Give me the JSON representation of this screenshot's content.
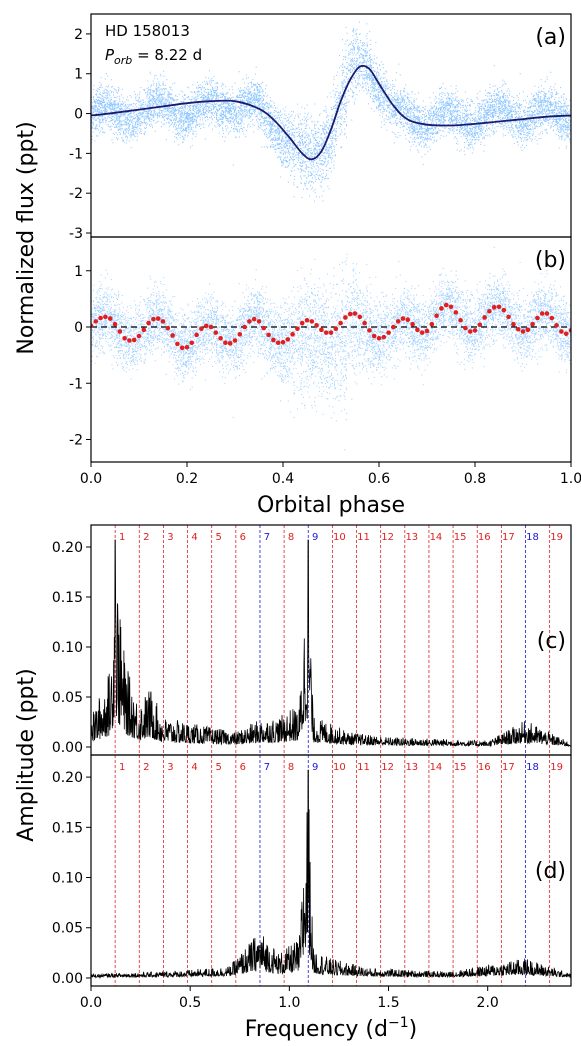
{
  "figure": {
    "panel_a": {
      "label": "(a)",
      "star_name": "HD 158013",
      "porb_symbol": "P",
      "porb_sub": "orb",
      "porb_value": " = 8.22 d"
    },
    "panel_b": {
      "label": "(b)"
    },
    "panel_c": {
      "label": "(c)"
    },
    "panel_d": {
      "label": "(d)"
    },
    "top_ylabel": "Normalized flux (ppt)",
    "top_xlabel": "Orbital phase",
    "bottom_ylabel_main": "Amplitude (ppt)",
    "bottom_xlabel_main": "Frequency (d",
    "bottom_xlabel_sup": "−1",
    "bottom_xlabel_end": ")"
  },
  "colors": {
    "scatter": "#3399ff",
    "model": "#1a1a6e",
    "binned": "#e02020",
    "harmonic_red": "#e02020",
    "harmonic_blue": "#1a1ad6"
  },
  "chart_data": [
    {
      "panel": "a",
      "type": "scatter",
      "xlim": [
        0.0,
        1.0
      ],
      "ylim": [
        -3.1,
        2.5
      ],
      "yticks": [
        "-3",
        "-2",
        "-1",
        "0",
        "1",
        "2"
      ],
      "model_phase": [
        0.0,
        0.05,
        0.1,
        0.15,
        0.2,
        0.25,
        0.3,
        0.35,
        0.38,
        0.41,
        0.44,
        0.46,
        0.48,
        0.5,
        0.52,
        0.54,
        0.56,
        0.58,
        0.6,
        0.63,
        0.66,
        0.7,
        0.75,
        0.8,
        0.85,
        0.9,
        0.95,
        1.0
      ],
      "model_flux": [
        -0.05,
        0.02,
        0.1,
        0.18,
        0.26,
        0.31,
        0.31,
        0.12,
        -0.15,
        -0.55,
        -1.0,
        -1.15,
        -0.95,
        -0.4,
        0.3,
        0.85,
        1.18,
        1.12,
        0.75,
        0.2,
        -0.15,
        -0.28,
        -0.3,
        -0.26,
        -0.2,
        -0.14,
        -0.08,
        -0.05
      ]
    },
    {
      "panel": "b",
      "type": "scatter",
      "xlim": [
        0.0,
        1.0
      ],
      "ylim": [
        -2.4,
        1.6
      ],
      "yticks": [
        "-2",
        "-1",
        "0",
        "1"
      ],
      "xticks": [
        "0.0",
        "0.2",
        "0.4",
        "0.6",
        "0.8",
        "1.0"
      ],
      "zero_line": 0,
      "binned_phase": [
        0.0,
        0.01,
        0.02,
        0.03,
        0.04,
        0.05,
        0.06,
        0.07,
        0.08,
        0.09,
        0.1,
        0.11,
        0.12,
        0.13,
        0.14,
        0.15,
        0.16,
        0.17,
        0.18,
        0.19,
        0.2,
        0.21,
        0.22,
        0.23,
        0.24,
        0.25,
        0.26,
        0.27,
        0.28,
        0.29,
        0.3,
        0.31,
        0.32,
        0.33,
        0.34,
        0.35,
        0.36,
        0.37,
        0.38,
        0.39,
        0.4,
        0.41,
        0.42,
        0.43,
        0.44,
        0.45,
        0.46,
        0.47,
        0.48,
        0.49,
        0.5,
        0.51,
        0.52,
        0.53,
        0.54,
        0.55,
        0.56,
        0.57,
        0.58,
        0.59,
        0.6,
        0.61,
        0.62,
        0.63,
        0.64,
        0.65,
        0.66,
        0.67,
        0.68,
        0.69,
        0.7,
        0.71,
        0.72,
        0.73,
        0.74,
        0.75,
        0.76,
        0.77,
        0.78,
        0.79,
        0.8,
        0.81,
        0.82,
        0.83,
        0.84,
        0.85,
        0.86,
        0.87,
        0.88,
        0.89,
        0.9,
        0.91,
        0.92,
        0.93,
        0.94,
        0.95,
        0.96,
        0.97,
        0.98,
        0.99,
        1.0
      ],
      "binned_flux": [
        0.02,
        0.1,
        0.16,
        0.18,
        0.15,
        0.05,
        -0.08,
        -0.2,
        -0.24,
        -0.23,
        -0.16,
        -0.05,
        0.07,
        0.14,
        0.15,
        0.1,
        -0.02,
        -0.15,
        -0.3,
        -0.37,
        -0.36,
        -0.28,
        -0.14,
        -0.03,
        0.02,
        0.0,
        -0.1,
        -0.2,
        -0.28,
        -0.29,
        -0.24,
        -0.13,
        0.0,
        0.1,
        0.14,
        0.1,
        -0.02,
        -0.14,
        -0.23,
        -0.28,
        -0.27,
        -0.22,
        -0.13,
        -0.03,
        0.07,
        0.12,
        0.1,
        0.03,
        -0.05,
        -0.1,
        -0.1,
        -0.03,
        0.07,
        0.17,
        0.23,
        0.24,
        0.18,
        0.07,
        -0.06,
        -0.16,
        -0.2,
        -0.18,
        -0.1,
        0.0,
        0.1,
        0.15,
        0.13,
        0.05,
        -0.05,
        -0.1,
        -0.07,
        0.05,
        0.2,
        0.33,
        0.39,
        0.36,
        0.26,
        0.12,
        -0.02,
        -0.08,
        -0.06,
        0.04,
        0.17,
        0.28,
        0.35,
        0.36,
        0.3,
        0.18,
        0.05,
        -0.04,
        -0.08,
        -0.05,
        0.05,
        0.16,
        0.24,
        0.24,
        0.16,
        0.03,
        -0.08,
        -0.12,
        -0.06
      ]
    },
    {
      "panel": "c",
      "type": "line",
      "xlim": [
        0.0,
        2.42
      ],
      "ylim": [
        -0.008,
        0.222
      ],
      "yticks": [
        "0.00",
        "0.05",
        "0.10",
        "0.15",
        "0.20"
      ],
      "peaks_x": [
        0.0,
        0.1,
        0.122,
        0.15,
        0.18,
        0.24,
        0.3,
        0.36,
        0.48,
        0.6,
        0.73,
        0.852,
        0.95,
        1.0,
        1.05,
        1.095,
        1.12,
        1.2,
        1.3,
        1.5,
        1.8,
        2.0,
        2.191,
        2.42
      ],
      "peaks_y": [
        0.03,
        0.08,
        0.207,
        0.12,
        0.08,
        0.045,
        0.06,
        0.03,
        0.025,
        0.02,
        0.015,
        0.028,
        0.03,
        0.038,
        0.04,
        0.207,
        0.03,
        0.025,
        0.015,
        0.01,
        0.008,
        0.006,
        0.027,
        0.004
      ],
      "harmonics": [
        "1",
        "2",
        "3",
        "4",
        "5",
        "6",
        "7",
        "8",
        "9",
        "10",
        "11",
        "12",
        "13",
        "14",
        "15",
        "16",
        "17",
        "18",
        "19"
      ],
      "harmonic_colors": [
        "r",
        "r",
        "r",
        "r",
        "r",
        "r",
        "b",
        "r",
        "b",
        "r",
        "r",
        "r",
        "r",
        "r",
        "r",
        "r",
        "r",
        "b",
        "r"
      ],
      "forb": 0.1217
    },
    {
      "panel": "d",
      "type": "line",
      "xlim": [
        0.0,
        2.42
      ],
      "ylim": [
        -0.008,
        0.222
      ],
      "yticks": [
        "0.00",
        "0.05",
        "0.10",
        "0.15",
        "0.20"
      ],
      "xticks": [
        "0.0",
        "0.5",
        "1.0",
        "1.5",
        "2.0"
      ],
      "peaks_x": [
        0.0,
        0.3,
        0.5,
        0.7,
        0.852,
        0.95,
        1.0,
        1.05,
        1.095,
        1.12,
        1.2,
        1.4,
        1.8,
        2.191,
        2.42
      ],
      "peaks_y": [
        0.004,
        0.006,
        0.008,
        0.012,
        0.048,
        0.025,
        0.032,
        0.04,
        0.207,
        0.03,
        0.02,
        0.01,
        0.006,
        0.02,
        0.004
      ],
      "harmonics": [
        "1",
        "2",
        "3",
        "4",
        "5",
        "6",
        "7",
        "8",
        "9",
        "10",
        "11",
        "12",
        "13",
        "14",
        "15",
        "16",
        "17",
        "18",
        "19"
      ],
      "harmonic_colors": [
        "r",
        "r",
        "r",
        "r",
        "r",
        "r",
        "b",
        "r",
        "b",
        "r",
        "r",
        "r",
        "r",
        "r",
        "r",
        "r",
        "r",
        "b",
        "r"
      ],
      "forb": 0.1217
    }
  ]
}
